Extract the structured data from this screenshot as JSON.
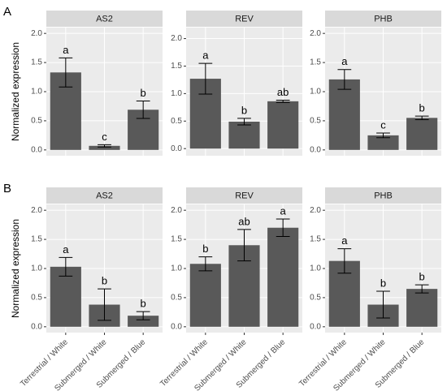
{
  "chart_data": [
    {
      "type": "bar",
      "panel_label": "A",
      "y_label": "Normalized expression",
      "title": "AS2",
      "values": [
        1.33,
        0.07,
        0.69
      ],
      "error": [
        0.25,
        0.02,
        0.15
      ],
      "letters": [
        "a",
        "c",
        "b"
      ],
      "color": "#595959",
      "ylim": [
        -0.1,
        2.1
      ],
      "yticks": [
        {
          "value": 0,
          "label": "0.0"
        },
        0.5,
        {
          "value": 1,
          "label": "1.0"
        },
        1.5,
        {
          "value": 2,
          "label": "2.0"
        }
      ],
      "grid": true
    },
    {
      "type": "bar",
      "title": "REV",
      "values": [
        1.27,
        0.49,
        0.86
      ],
      "error": [
        0.28,
        0.06,
        0.02
      ],
      "letters": [
        "a",
        "b",
        "ab"
      ],
      "color": "#595959",
      "ylim": [
        -0.13,
        2.2
      ],
      "yticks": [
        {
          "value": 0,
          "label": "0.0"
        },
        0.5,
        {
          "value": 1,
          "label": "1.0"
        },
        1.5,
        {
          "value": 2,
          "label": "2.0"
        }
      ],
      "grid": true
    },
    {
      "type": "bar",
      "title": "PHB",
      "values": [
        1.21,
        0.25,
        0.55
      ],
      "error": [
        0.17,
        0.04,
        0.03
      ],
      "letters": [
        "a",
        "c",
        "b"
      ],
      "color": "#595959",
      "ylim": [
        -0.1,
        2.1
      ],
      "yticks": [
        {
          "value": 0,
          "label": "0.0"
        },
        0.5,
        {
          "value": 1,
          "label": "1.0"
        },
        1.5,
        {
          "value": 2,
          "label": "2.0"
        }
      ],
      "grid": true
    },
    {
      "type": "bar",
      "panel_label": "B",
      "y_label": "Normalized expression",
      "title": "AS2",
      "categories": [
        "Terrestrial / White",
        "Submerged / White",
        "Submerged / Blue"
      ],
      "values": [
        1.03,
        0.38,
        0.19
      ],
      "error": [
        0.16,
        0.27,
        0.07
      ],
      "letters": [
        "a",
        "b",
        "b"
      ],
      "color": "#595959",
      "ylim": [
        -0.1,
        2.1
      ],
      "yticks": [
        {
          "value": 0,
          "label": "0.0"
        },
        0.5,
        {
          "value": 1,
          "label": "1.0"
        },
        1.5,
        {
          "value": 2,
          "label": "2.0"
        }
      ],
      "grid": true
    },
    {
      "type": "bar",
      "title": "REV",
      "categories": [
        "Terrestrial / White",
        "Submerged / White",
        "Submerged / Blue"
      ],
      "values": [
        1.08,
        1.4,
        1.7
      ],
      "error": [
        0.12,
        0.27,
        0.15
      ],
      "letters": [
        "b",
        "ab",
        "a"
      ],
      "color": "#595959",
      "ylim": [
        -0.1,
        2.1
      ],
      "yticks": [
        {
          "value": 0,
          "label": "0.0"
        },
        0.5,
        {
          "value": 1,
          "label": "1.0"
        },
        1.5,
        {
          "value": 2,
          "label": "2.0"
        }
      ],
      "grid": true
    },
    {
      "type": "bar",
      "title": "PHB",
      "categories": [
        "Terrestrial / White",
        "Submerged / White",
        "Submerged / Blue"
      ],
      "values": [
        1.13,
        0.38,
        0.65
      ],
      "error": [
        0.21,
        0.23,
        0.07
      ],
      "letters": [
        "a",
        "b",
        "b"
      ],
      "color": "#595959",
      "ylim": [
        -0.1,
        2.1
      ],
      "yticks": [
        {
          "value": 0,
          "label": "0.0"
        },
        0.5,
        {
          "value": 1,
          "label": "1.0"
        },
        1.5,
        {
          "value": 2,
          "label": "2.0"
        }
      ],
      "grid": true
    }
  ]
}
